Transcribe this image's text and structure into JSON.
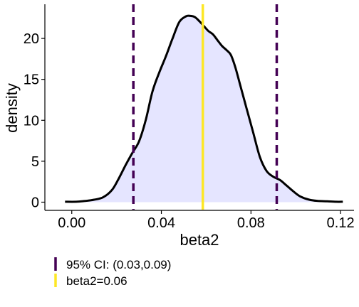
{
  "chart_data": {
    "type": "area",
    "xlabel": "beta2",
    "ylabel": "density",
    "xlim": [
      -0.012,
      0.126
    ],
    "ylim": [
      -1.0,
      24.0
    ],
    "x_ticks": [
      0.0,
      0.04,
      0.08,
      0.12
    ],
    "x_tick_labels": [
      "0.00",
      "0.04",
      "0.08",
      "0.12"
    ],
    "y_ticks": [
      0,
      5,
      10,
      15,
      20
    ],
    "y_tick_labels": [
      "0",
      "5",
      "10",
      "15",
      "20"
    ],
    "grid": false,
    "density_curve": {
      "x": [
        -0.003,
        0.002,
        0.006,
        0.01,
        0.014,
        0.018,
        0.021,
        0.024,
        0.027,
        0.03,
        0.033,
        0.036,
        0.039,
        0.042,
        0.045,
        0.048,
        0.051,
        0.053,
        0.055,
        0.057,
        0.059,
        0.061,
        0.063,
        0.065,
        0.067,
        0.069,
        0.071,
        0.073,
        0.075,
        0.078,
        0.081,
        0.084,
        0.087,
        0.09,
        0.093,
        0.096,
        0.099,
        0.102,
        0.106,
        0.11,
        0.114,
        0.118,
        0.121
      ],
      "y": [
        0.05,
        0.05,
        0.15,
        0.3,
        0.6,
        1.5,
        2.9,
        4.5,
        6.0,
        7.4,
        10.0,
        13.5,
        15.8,
        17.8,
        20.0,
        22.0,
        22.7,
        22.75,
        22.6,
        22.1,
        21.5,
        20.9,
        20.5,
        19.8,
        19.1,
        18.6,
        18.0,
        16.5,
        14.5,
        11.5,
        8.5,
        5.5,
        3.8,
        3.1,
        2.7,
        2.0,
        1.3,
        0.7,
        0.3,
        0.15,
        0.1,
        0.05,
        0.05
      ]
    },
    "fill_color": "#e5e5ff",
    "line_color": "#000000",
    "ci_lower": 0.0275,
    "ci_upper": 0.0915,
    "point_estimate": 0.0585,
    "ci_color": "#440154",
    "estimate_color": "#fde725",
    "legend": {
      "placement": "bottom-left",
      "entries": [
        {
          "label": "95% CI: (0.03,0.09)",
          "color": "#440154"
        },
        {
          "label": "beta2=0.06",
          "color": "#fde725"
        }
      ]
    }
  }
}
